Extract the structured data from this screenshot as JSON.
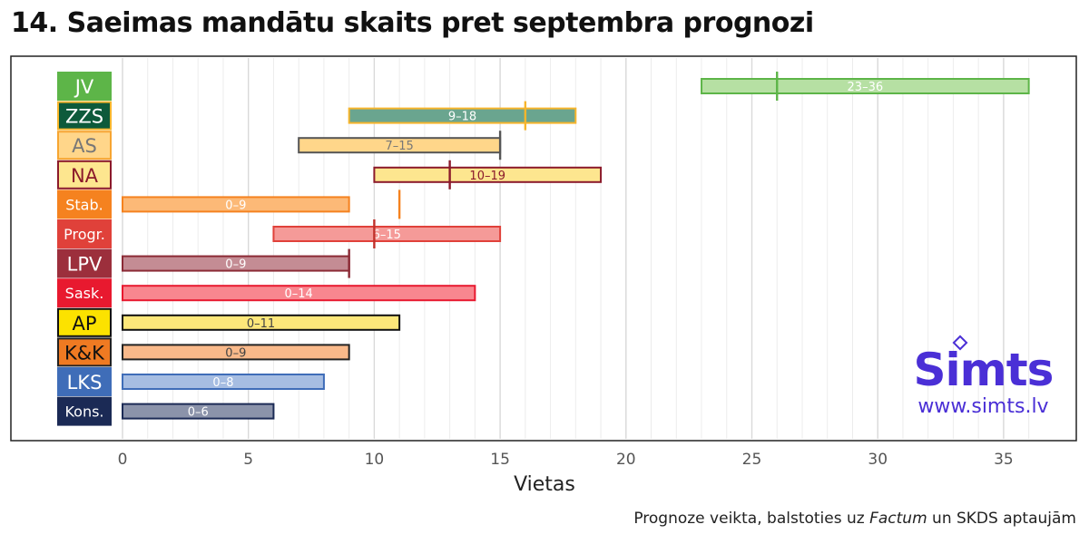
{
  "title": "14. Saeimas mandātu skaits pret septembra prognozi",
  "note": {
    "prefix": "Prognoze veikta, balstoties uz ",
    "italic": "Factum",
    "suffix": " un SKDS aptaujām"
  },
  "logo": {
    "name": "Simts",
    "url": "www.simts.lv"
  },
  "chart_data": {
    "type": "bar",
    "orientation": "horizontal",
    "title": "14. Saeimas mandātu skaits pret septembra prognozi",
    "xlabel": "Vietas",
    "ylabel": "",
    "xlim": [
      -4.5,
      37.5
    ],
    "xticks": [
      0,
      5,
      10,
      15,
      20,
      25,
      30,
      35
    ],
    "grid": true,
    "parties": [
      {
        "label": "JV",
        "low": 23,
        "high": 36,
        "range_label": "23–36",
        "actual": 26,
        "fill": "#b6e0a3",
        "stroke": "#5db548",
        "tag_bg": "#5db548",
        "tag_fg": "#ffffff",
        "tag_border": "#5db548",
        "text_color": "#ffffff",
        "marker_color": "#5db548"
      },
      {
        "label": "ZZS",
        "low": 9,
        "high": 18,
        "range_label": "9–18",
        "actual": 16,
        "fill": "#6aa58f",
        "stroke": "#f7b52c",
        "tag_bg": "#0d5a3b",
        "tag_fg": "#ffffff",
        "tag_border": "#f7b52c",
        "text_color": "#ffffff",
        "marker_color": "#f7b52c"
      },
      {
        "label": "AS",
        "low": 7,
        "high": 15,
        "range_label": "7–15",
        "actual": 15,
        "fill": "#ffd68a",
        "stroke": "#555555",
        "tag_bg": "#ffd68a",
        "tag_fg": "#777777",
        "tag_border": "#f7a531",
        "text_color": "#777777",
        "marker_color": "#555555"
      },
      {
        "label": "NA",
        "low": 10,
        "high": 19,
        "range_label": "10–19",
        "actual": 13,
        "fill": "#fde68f",
        "stroke": "#8b1a2b",
        "tag_bg": "#fde68f",
        "tag_fg": "#8b1a2b",
        "tag_border": "#8b1a2b",
        "text_color": "#8b1a2b",
        "marker_color": "#8b1a2b"
      },
      {
        "label": "Stab.",
        "low": 0,
        "high": 9,
        "range_label": "0–9",
        "actual": 11,
        "fill": "#fcb977",
        "stroke": "#f5821f",
        "tag_bg": "#f5821f",
        "tag_fg": "#ffffff",
        "tag_border": "#f5821f",
        "text_color": "#ffffff",
        "marker_color": "#f5821f"
      },
      {
        "label": "Progr.",
        "low": 6,
        "high": 15,
        "range_label": "6–15",
        "actual": 10,
        "fill": "#f59a98",
        "stroke": "#e0413a",
        "tag_bg": "#e0413a",
        "tag_fg": "#ffffff",
        "tag_border": "#e0413a",
        "text_color": "#ffffff",
        "marker_color": "#c0302a"
      },
      {
        "label": "LPV",
        "low": 0,
        "high": 9,
        "range_label": "0–9",
        "actual": 9,
        "fill": "#c48c94",
        "stroke": "#8b2a35",
        "tag_bg": "#9c2f3c",
        "tag_fg": "#ffffff",
        "tag_border": "#9c2f3c",
        "text_color": "#ffffff",
        "marker_color": "#8b2a35"
      },
      {
        "label": "Sask.",
        "low": 0,
        "high": 14,
        "range_label": "0–14",
        "actual": null,
        "fill": "#f8878f",
        "stroke": "#e8192f",
        "tag_bg": "#e8192f",
        "tag_fg": "#ffffff",
        "tag_border": "#e8192f",
        "text_color": "#ffffff",
        "marker_color": "#e8192f"
      },
      {
        "label": "AP",
        "low": 0,
        "high": 11,
        "range_label": "0–11",
        "actual": null,
        "fill": "#fde77a",
        "stroke": "#111111",
        "tag_bg": "#fce200",
        "tag_fg": "#111111",
        "tag_border": "#111111",
        "text_color": "#444444",
        "marker_color": "#111111"
      },
      {
        "label": "K&K",
        "low": 0,
        "high": 9,
        "range_label": "0–9",
        "actual": null,
        "fill": "#f9b98a",
        "stroke": "#222222",
        "tag_bg": "#ef7a22",
        "tag_fg": "#111111",
        "tag_border": "#222222",
        "text_color": "#444444",
        "marker_color": "#222222"
      },
      {
        "label": "LKS",
        "low": 0,
        "high": 8,
        "range_label": "0–8",
        "actual": null,
        "fill": "#a6bde2",
        "stroke": "#3f6db8",
        "tag_bg": "#3f6db8",
        "tag_fg": "#ffffff",
        "tag_border": "#3f6db8",
        "text_color": "#ffffff",
        "marker_color": "#3f6db8"
      },
      {
        "label": "Kons.",
        "low": 0,
        "high": 6,
        "range_label": "0–6",
        "actual": null,
        "fill": "#8b93aa",
        "stroke": "#1b2a55",
        "tag_bg": "#1b2a55",
        "tag_fg": "#ffffff",
        "tag_border": "#1b2a55",
        "text_color": "#ffffff",
        "marker_color": "#1b2a55"
      }
    ]
  }
}
